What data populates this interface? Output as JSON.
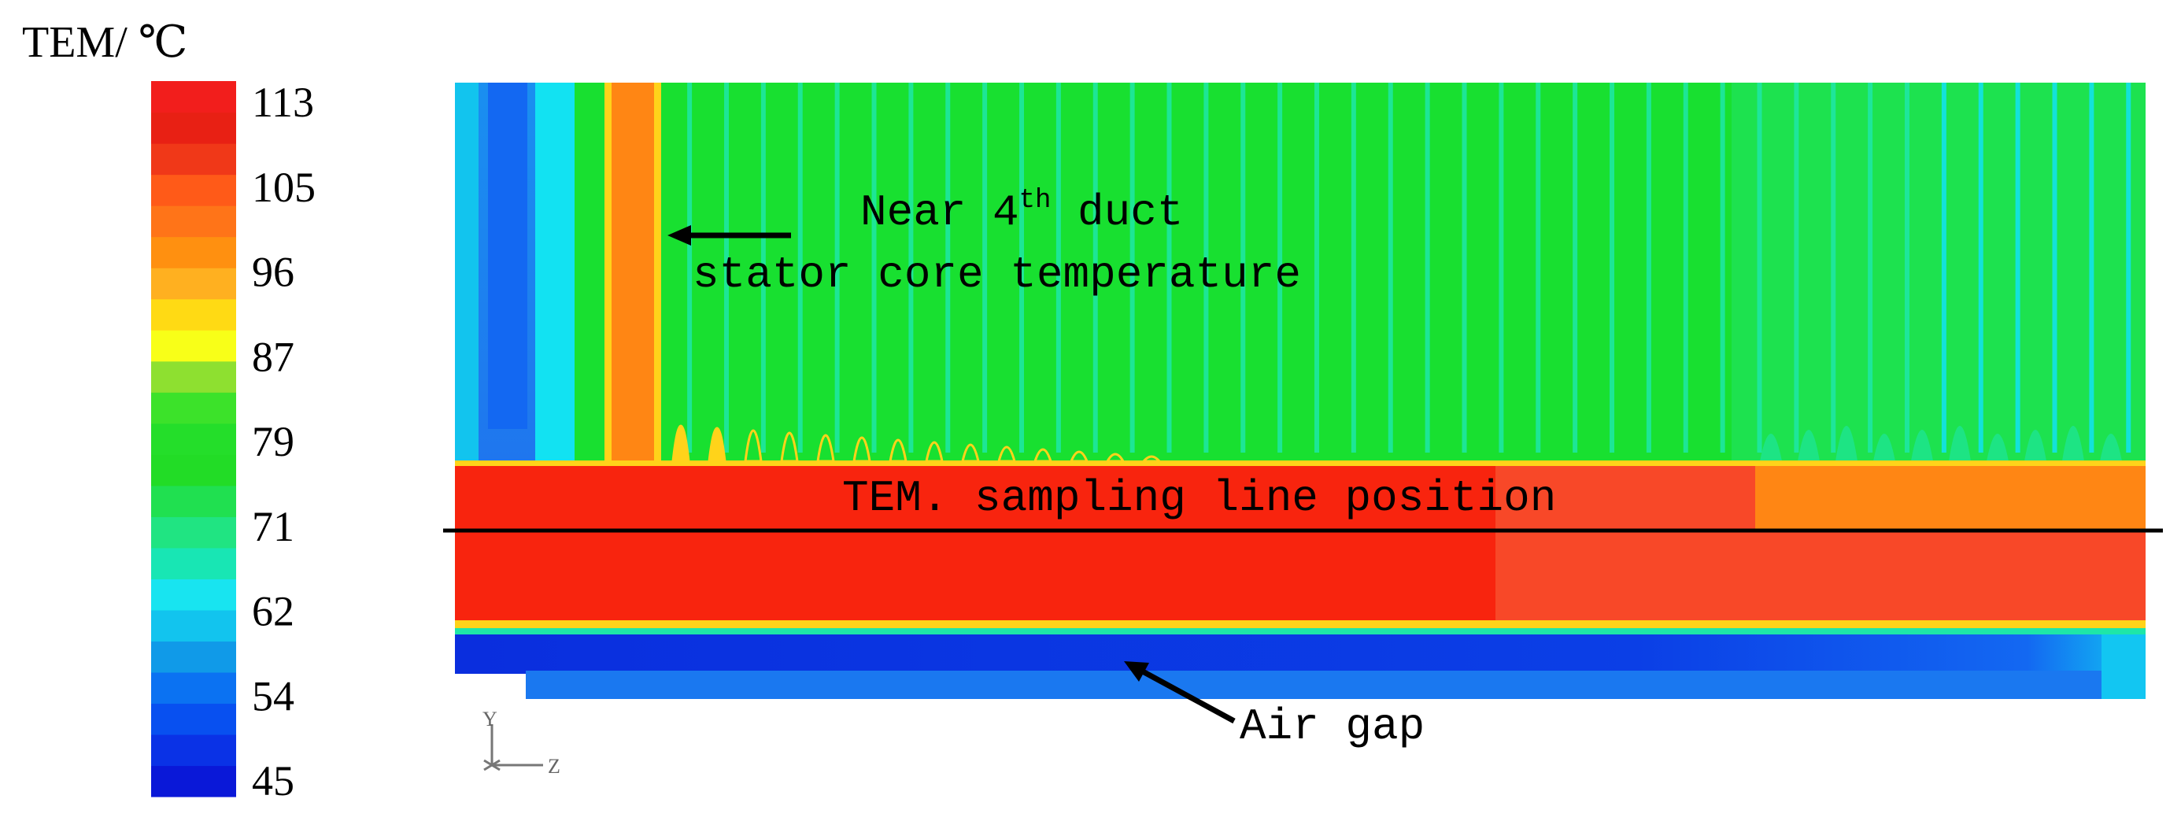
{
  "legend": {
    "title": "TEM/ ℃",
    "ticks": [
      "113",
      "105",
      "96",
      "87",
      "79",
      "71",
      "62",
      "54",
      "45"
    ],
    "colors": [
      "#0a18d8",
      "#0a32e6",
      "#0850f0",
      "#0b72f2",
      "#109ae8",
      "#12c4ee",
      "#18e4f0",
      "#18e6b4",
      "#20e482",
      "#20e050",
      "#22dc26",
      "#24de2a",
      "#3ce22a",
      "#8ee030",
      "#f8ff18",
      "#ffda14",
      "#ffb020",
      "#ff9010",
      "#ff7418",
      "#ff5a18",
      "#f03818",
      "#e82014",
      "#f21e1c"
    ]
  },
  "contour": {
    "colors": {
      "green": "#18e030",
      "red": "#f8240e",
      "red_light": "#f84828",
      "orange": "#ff8614",
      "blue_deep": "#0a2ede",
      "blue_mid": "#1368f2",
      "cyan": "#12e2f2",
      "light_blue": "#2fa0f0",
      "yellow": "#ffd31a",
      "teal": "#1ee6a8"
    }
  },
  "annotations": {
    "duct_line1": "Near 4",
    "duct_sup": "th",
    "duct_line1_rest": " duct",
    "duct_line2": "stator core temperature",
    "sampling_line": "TEM. sampling line position",
    "air_gap": "Air gap"
  },
  "axes_icon": {
    "y": "Y",
    "z": "Z"
  }
}
